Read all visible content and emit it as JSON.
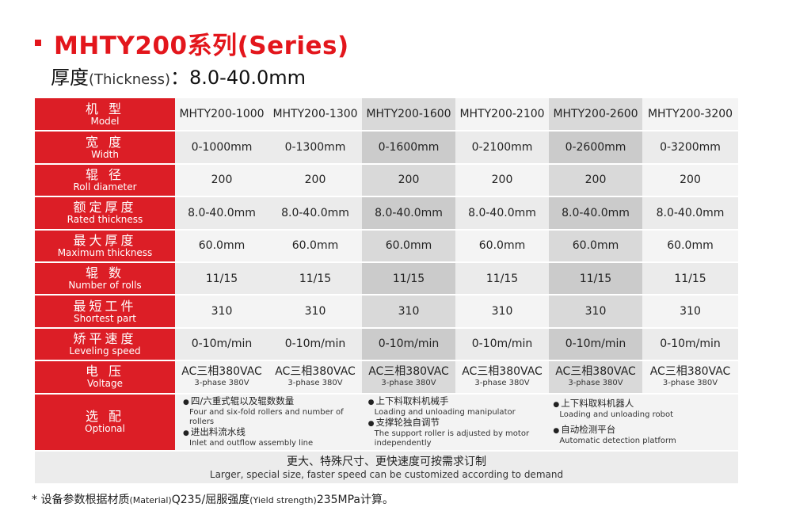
{
  "title": "MHTY200系列(Series)",
  "subtitle": {
    "zh": "厚度",
    "en": "(Thickness)",
    "value": "：8.0-40.0mm"
  },
  "rows": [
    {
      "zh": "机 型",
      "en": "Model",
      "values": [
        "MHTY200-1000",
        "MHTY200-1300",
        "MHTY200-1600",
        "MHTY200-2100",
        "MHTY200-2600",
        "MHTY200-3200"
      ]
    },
    {
      "zh": "宽 度",
      "en": "Width",
      "values": [
        "0-1000mm",
        "0-1300mm",
        "0-1600mm",
        "0-2100mm",
        "0-2600mm",
        "0-3200mm"
      ]
    },
    {
      "zh": "辊 径",
      "en": "Roll diameter",
      "values": [
        "200",
        "200",
        "200",
        "200",
        "200",
        "200"
      ]
    },
    {
      "zh": "额定厚度",
      "en": "Rated thickness",
      "values": [
        "8.0-40.0mm",
        "8.0-40.0mm",
        "8.0-40.0mm",
        "8.0-40.0mm",
        "8.0-40.0mm",
        "8.0-40.0mm"
      ]
    },
    {
      "zh": "最大厚度",
      "en": "Maximum thickness",
      "values": [
        "60.0mm",
        "60.0mm",
        "60.0mm",
        "60.0mm",
        "60.0mm",
        "60.0mm"
      ]
    },
    {
      "zh": "辊 数",
      "en": "Number of rolls",
      "values": [
        "11/15",
        "11/15",
        "11/15",
        "11/15",
        "11/15",
        "11/15"
      ]
    },
    {
      "zh": "最短工件",
      "en": "Shortest part",
      "values": [
        "310",
        "310",
        "310",
        "310",
        "310",
        "310"
      ]
    },
    {
      "zh": "矫平速度",
      "en": "Leveling speed",
      "values": [
        "0-10m/min",
        "0-10m/min",
        "0-10m/min",
        "0-10m/min",
        "0-10m/min",
        "0-10m/min"
      ]
    }
  ],
  "voltage": {
    "zh": "电 压",
    "en": "Voltage",
    "main": "AC三相380VAC",
    "sub": "3-phase 380V"
  },
  "optional": {
    "zh": "选 配",
    "en": "Optional",
    "items": [
      {
        "zh": "四/六重式辊以及辊数数量",
        "en": "Four and six-fold rollers and number of rollers"
      },
      {
        "zh": "进出料流水线",
        "en": "Inlet and outflow assembly line"
      },
      {
        "zh": "上下料取料机械手",
        "en": "Loading and unloading manipulator"
      },
      {
        "zh": "支撑轮独自调节",
        "en": "The support roller is adjusted by motor independently"
      },
      {
        "zh": "上下料取料机器人",
        "en": "Loading and unloading robot"
      },
      {
        "zh": "自动检测平台",
        "en": "Automatic detection platform"
      }
    ]
  },
  "footer": {
    "zh": "更大、特殊尺寸、更快速度可按需求订制",
    "en": "Larger, special size, faster speed can be customized according to demand"
  },
  "note": {
    "p1": "* 设备参数根据材质",
    "p2": "(Material)",
    "p3": "Q235/屈服强度",
    "p4": "(Yield strength)",
    "p5": "235MPa计算。"
  }
}
